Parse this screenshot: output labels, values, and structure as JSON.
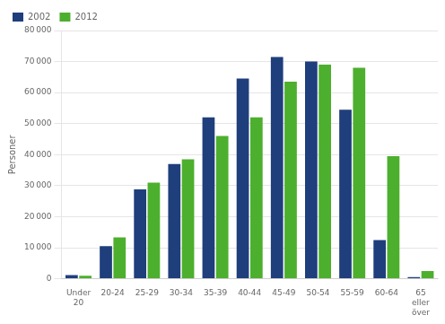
{
  "chart_data": {
    "type": "bar",
    "ylabel": "Personer",
    "categories": [
      "Under\n20",
      "20-24",
      "25-29",
      "30-34",
      "35-39",
      "40-44",
      "45-49",
      "50-54",
      "55-59",
      "60-64",
      "65\neller\növer"
    ],
    "series": [
      {
        "name": "2002",
        "color": "#1F3E7C",
        "values": [
          1200,
          10500,
          28800,
          37000,
          52000,
          64500,
          71500,
          70000,
          54500,
          12500,
          500
        ]
      },
      {
        "name": "2012",
        "color": "#4DAF2E",
        "values": [
          1000,
          13300,
          31000,
          38500,
          46000,
          52000,
          63500,
          69000,
          68000,
          39500,
          2500
        ]
      }
    ],
    "ylim": [
      0,
      80000
    ],
    "yticks": [
      0,
      {
        "value": 10000,
        "label": "10 000"
      },
      {
        "value": 20000,
        "label": "20 000"
      },
      {
        "value": 30000,
        "label": "30 000"
      },
      {
        "value": 40000,
        "label": "40 000"
      },
      {
        "value": 50000,
        "label": "50 000"
      },
      {
        "value": 60000,
        "label": "60 000"
      },
      {
        "value": 70000,
        "label": "70 000"
      },
      {
        "value": 80000,
        "label": "80 000"
      }
    ],
    "grid": true,
    "legend": "upper left"
  }
}
